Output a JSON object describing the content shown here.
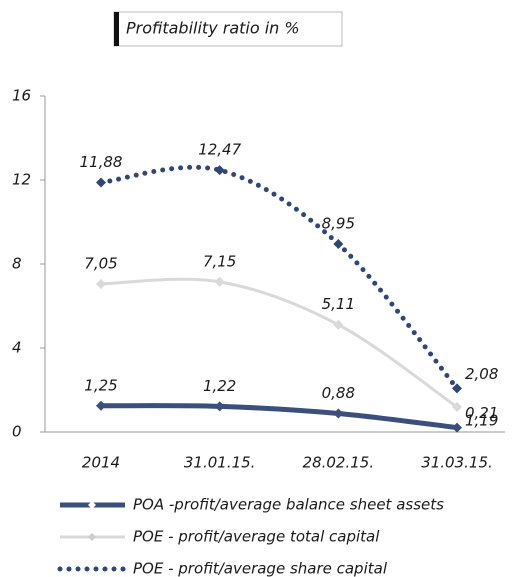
{
  "chart_data": {
    "type": "line",
    "title": "Profitability ratio in %",
    "categories": [
      "2014",
      "31.01.15.",
      "28.02.15.",
      "31.03.15."
    ],
    "series": [
      {
        "name": "POA -profit/average balance sheet assets",
        "color": "#3b4f7c",
        "style": "solid",
        "values": [
          1.25,
          1.22,
          0.88,
          0.21
        ],
        "value_labels": [
          "1,25",
          "1,22",
          "0,88",
          "0,21"
        ]
      },
      {
        "name": "POE - profit/average total capital",
        "color": "#d9d9d9",
        "style": "solid",
        "values": [
          7.05,
          7.15,
          5.11,
          1.19
        ],
        "value_labels": [
          "7,05",
          "7,15",
          "5,11",
          "1,19"
        ]
      },
      {
        "name": "POE - profit/average share capital",
        "color": "#2f4678",
        "style": "dotted",
        "values": [
          11.88,
          12.47,
          8.95,
          2.08
        ],
        "value_labels": [
          "11,88",
          "12,47",
          "8,95",
          "2,08"
        ]
      }
    ],
    "ylim": [
      0,
      16
    ],
    "yticks": [
      0,
      4,
      8,
      12,
      16
    ],
    "grid": false,
    "legend": "bottom"
  }
}
